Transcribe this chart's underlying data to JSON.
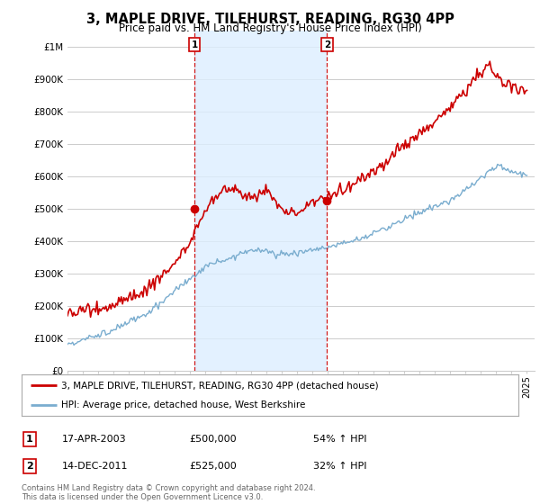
{
  "title": "3, MAPLE DRIVE, TILEHURST, READING, RG30 4PP",
  "subtitle": "Price paid vs. HM Land Registry's House Price Index (HPI)",
  "ylim": [
    0,
    1050000
  ],
  "yticks": [
    0,
    100000,
    200000,
    300000,
    400000,
    500000,
    600000,
    700000,
    800000,
    900000,
    1000000
  ],
  "ytick_labels": [
    "£0",
    "£100K",
    "£200K",
    "£300K",
    "£400K",
    "£500K",
    "£600K",
    "£700K",
    "£800K",
    "£900K",
    "£1M"
  ],
  "sale1_year": 2003.3,
  "sale1_price": 500000,
  "sale1_date": "17-APR-2003",
  "sale1_hpi_pct": "54% ↑ HPI",
  "sale2_year": 2011.95,
  "sale2_price": 525000,
  "sale2_date": "14-DEC-2011",
  "sale2_hpi_pct": "32% ↑ HPI",
  "red_color": "#cc0000",
  "blue_color": "#7aadcf",
  "shade_color": "#ddeeff",
  "background_color": "#ffffff",
  "grid_color": "#cccccc",
  "legend_label_red": "3, MAPLE DRIVE, TILEHURST, READING, RG30 4PP (detached house)",
  "legend_label_blue": "HPI: Average price, detached house, West Berkshire",
  "footer": "Contains HM Land Registry data © Crown copyright and database right 2024.\nThis data is licensed under the Open Government Licence v3.0.",
  "xlim_start": 1995,
  "xlim_end": 2025.5
}
